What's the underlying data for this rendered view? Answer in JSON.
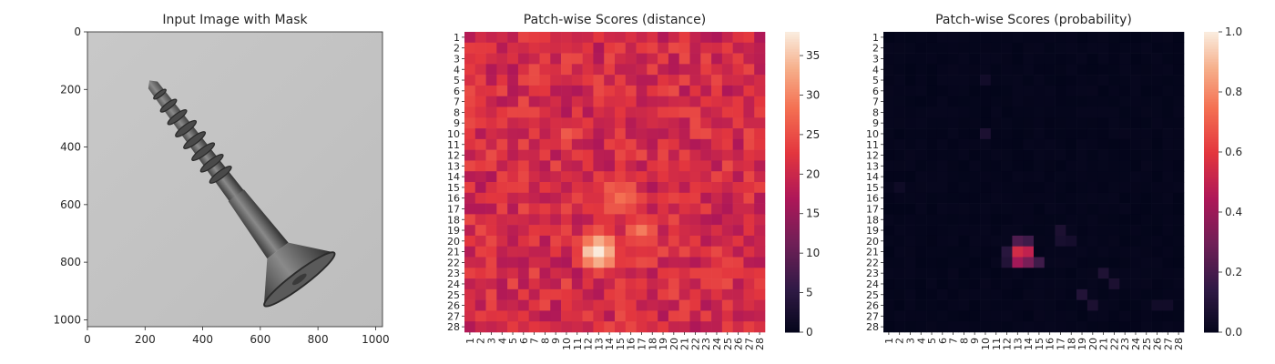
{
  "chart_data": [
    {
      "type": "image",
      "title": "Input Image with Mask",
      "xlim": [
        0,
        1024
      ],
      "ylim": [
        1024,
        0
      ],
      "x_ticks": [
        0,
        200,
        400,
        600,
        800,
        1000
      ],
      "y_ticks": [
        0,
        200,
        400,
        600,
        800,
        1000
      ]
    },
    {
      "type": "heatmap",
      "title": "Patch-wise Scores (distance)",
      "rows": 28,
      "cols": 28,
      "row_labels": [
        "1",
        "2",
        "3",
        "4",
        "5",
        "6",
        "7",
        "8",
        "9",
        "10",
        "11",
        "12",
        "13",
        "14",
        "15",
        "16",
        "17",
        "18",
        "19",
        "20",
        "21",
        "22",
        "23",
        "24",
        "25",
        "26",
        "27",
        "28"
      ],
      "col_labels": [
        "1",
        "2",
        "3",
        "4",
        "5",
        "6",
        "7",
        "8",
        "9",
        "10",
        "11",
        "12",
        "13",
        "14",
        "15",
        "16",
        "17",
        "18",
        "19",
        "20",
        "21",
        "22",
        "23",
        "24",
        "25",
        "26",
        "27",
        "28"
      ],
      "colorbar": {
        "min": 0,
        "max": 38,
        "ticks": [
          0,
          5,
          10,
          15,
          20,
          25,
          30,
          35
        ]
      },
      "baseline": 21,
      "hotspots": [
        {
          "row": 21,
          "col": 13,
          "peak": 37,
          "spread": 2.2
        },
        {
          "row": 16,
          "col": 15,
          "peak": 28,
          "spread": 3.0
        },
        {
          "row": 10,
          "col": 10,
          "peak": 26,
          "spread": 2.0
        },
        {
          "row": 19,
          "col": 17,
          "peak": 29,
          "spread": 2.0
        }
      ]
    },
    {
      "type": "heatmap",
      "title": "Patch-wise Scores (probability)",
      "rows": 28,
      "cols": 28,
      "row_labels": [
        "1",
        "2",
        "3",
        "4",
        "5",
        "6",
        "7",
        "8",
        "9",
        "10",
        "11",
        "12",
        "13",
        "14",
        "15",
        "16",
        "17",
        "18",
        "19",
        "20",
        "21",
        "22",
        "23",
        "24",
        "25",
        "26",
        "27",
        "28"
      ],
      "col_labels": [
        "1",
        "2",
        "3",
        "4",
        "5",
        "6",
        "7",
        "8",
        "9",
        "10",
        "11",
        "12",
        "13",
        "14",
        "15",
        "16",
        "17",
        "18",
        "19",
        "20",
        "21",
        "22",
        "23",
        "24",
        "25",
        "26",
        "27",
        "28"
      ],
      "colorbar": {
        "min": 0.0,
        "max": 1.0,
        "ticks": [
          "0.0",
          "0.2",
          "0.4",
          "0.6",
          "0.8",
          "1.0"
        ]
      },
      "baseline": 0.0,
      "cells": [
        {
          "row": 21,
          "col": 13,
          "value": 0.55
        },
        {
          "row": 21,
          "col": 14,
          "value": 0.5
        },
        {
          "row": 22,
          "col": 13,
          "value": 0.42
        },
        {
          "row": 22,
          "col": 14,
          "value": 0.32
        },
        {
          "row": 20,
          "col": 13,
          "value": 0.22
        },
        {
          "row": 20,
          "col": 14,
          "value": 0.18
        },
        {
          "row": 22,
          "col": 15,
          "value": 0.18
        },
        {
          "row": 21,
          "col": 12,
          "value": 0.12
        },
        {
          "row": 22,
          "col": 12,
          "value": 0.1
        },
        {
          "row": 19,
          "col": 17,
          "value": 0.08
        },
        {
          "row": 20,
          "col": 17,
          "value": 0.07
        },
        {
          "row": 20,
          "col": 18,
          "value": 0.06
        },
        {
          "row": 23,
          "col": 21,
          "value": 0.09
        },
        {
          "row": 24,
          "col": 22,
          "value": 0.08
        },
        {
          "row": 25,
          "col": 19,
          "value": 0.1
        },
        {
          "row": 26,
          "col": 20,
          "value": 0.08
        },
        {
          "row": 10,
          "col": 10,
          "value": 0.08
        },
        {
          "row": 5,
          "col": 10,
          "value": 0.05
        },
        {
          "row": 26,
          "col": 26,
          "value": 0.05
        },
        {
          "row": 26,
          "col": 27,
          "value": 0.05
        },
        {
          "row": 15,
          "col": 2,
          "value": 0.04
        }
      ]
    }
  ]
}
